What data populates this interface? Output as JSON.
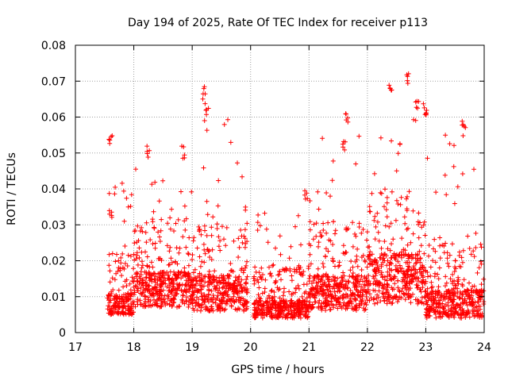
{
  "chart_data": {
    "type": "scatter",
    "title": "Day 194 of 2025, Rate Of TEC Index for receiver p113",
    "xlabel": "GPS time / hours",
    "ylabel": "ROTI / TECUs",
    "xlim": [
      17,
      24
    ],
    "ylim": [
      0,
      0.08
    ],
    "x_ticks": [
      "17",
      "18",
      "19",
      "20",
      "21",
      "22",
      "23",
      "24"
    ],
    "y_ticks": [
      "0",
      "0.01",
      "0.02",
      "0.03",
      "0.04",
      "0.05",
      "0.06",
      "0.07",
      "0.08"
    ],
    "grid": true,
    "marker": "+",
    "series_color": "#ff0000",
    "data_gap": [
      19.95,
      20.05
    ],
    "series": [
      {
        "name": "ROTI",
        "density_profile": [
          {
            "from": 17.55,
            "to": 18.0,
            "base": 0.01,
            "spread": 0.006,
            "max": 0.055
          },
          {
            "from": 18.0,
            "to": 19.0,
            "base": 0.012,
            "spread": 0.01,
            "max": 0.052
          },
          {
            "from": 19.0,
            "to": 19.95,
            "base": 0.011,
            "spread": 0.01,
            "max": 0.07
          },
          {
            "from": 20.05,
            "to": 21.0,
            "base": 0.009,
            "spread": 0.005,
            "max": 0.041
          },
          {
            "from": 21.0,
            "to": 22.0,
            "base": 0.011,
            "spread": 0.01,
            "max": 0.063
          },
          {
            "from": 22.0,
            "to": 23.0,
            "base": 0.013,
            "spread": 0.014,
            "max": 0.073
          },
          {
            "from": 23.0,
            "to": 24.0,
            "base": 0.009,
            "spread": 0.008,
            "max": 0.064
          }
        ],
        "highlights": [
          {
            "x": 17.6,
            "y": 0.055
          },
          {
            "x": 17.6,
            "y": 0.035
          },
          {
            "x": 18.25,
            "y": 0.052
          },
          {
            "x": 18.85,
            "y": 0.052
          },
          {
            "x": 19.2,
            "y": 0.069
          },
          {
            "x": 19.25,
            "y": 0.064
          },
          {
            "x": 20.95,
            "y": 0.04
          },
          {
            "x": 21.65,
            "y": 0.062
          },
          {
            "x": 21.6,
            "y": 0.054
          },
          {
            "x": 22.4,
            "y": 0.069
          },
          {
            "x": 22.7,
            "y": 0.073
          },
          {
            "x": 22.85,
            "y": 0.066
          },
          {
            "x": 23.0,
            "y": 0.064
          },
          {
            "x": 23.65,
            "y": 0.061
          }
        ]
      }
    ]
  }
}
